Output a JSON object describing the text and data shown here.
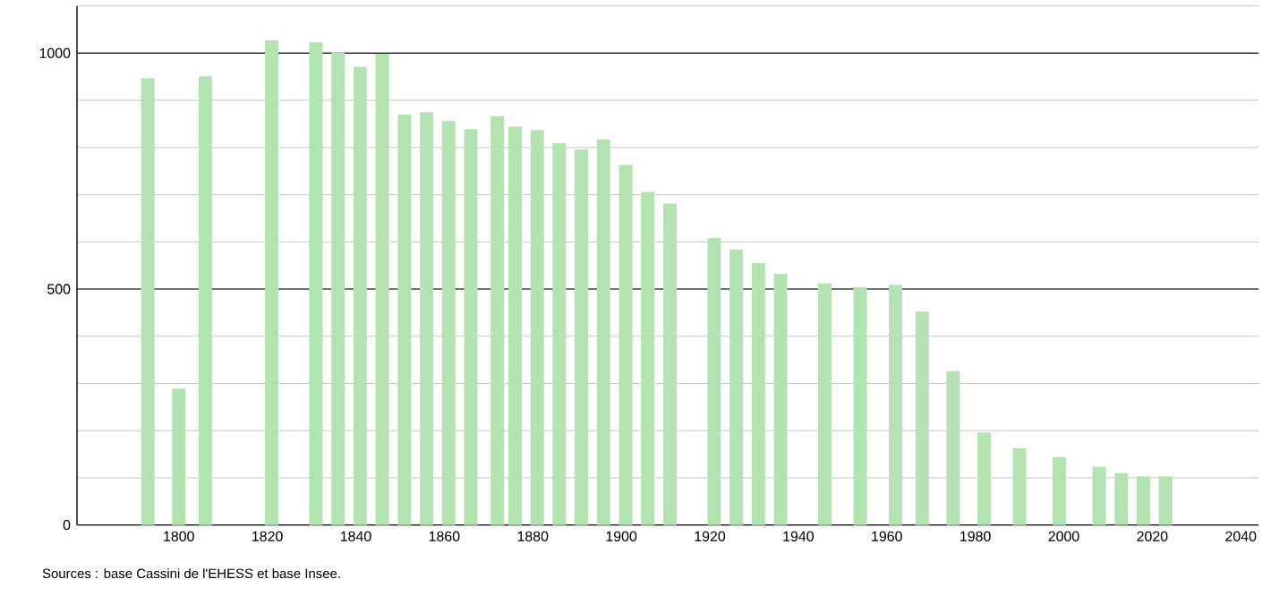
{
  "chart_data": {
    "type": "bar",
    "color": "#b3e3b0",
    "x": [
      1793,
      1800,
      1806,
      1821,
      1831,
      1836,
      1841,
      1846,
      1851,
      1856,
      1861,
      1866,
      1872,
      1876,
      1881,
      1886,
      1891,
      1896,
      1901,
      1906,
      1911,
      1921,
      1926,
      1931,
      1936,
      1946,
      1954,
      1962,
      1968,
      1975,
      1982,
      1990,
      1999,
      2008,
      2013,
      2018,
      2023
    ],
    "values": [
      947,
      289,
      951,
      1027,
      1023,
      1001,
      971,
      999,
      870,
      875,
      856,
      839,
      866,
      844,
      837,
      809,
      796,
      817,
      763,
      706,
      681,
      608,
      584,
      555,
      532,
      512,
      504,
      509,
      452,
      326,
      196,
      163,
      144,
      123,
      110,
      103,
      103
    ],
    "xlim": [
      1777,
      2044
    ],
    "xticks": [
      1800,
      1820,
      1840,
      1860,
      1880,
      1900,
      1920,
      1940,
      1960,
      1980,
      2000,
      2020,
      2040
    ],
    "ylim": [
      0,
      1100
    ],
    "yticks": [
      0,
      {
        "value": 100,
        "label": null
      },
      {
        "value": 200,
        "label": null
      },
      {
        "value": 300,
        "label": null
      },
      {
        "value": 400,
        "label": null
      },
      500,
      {
        "value": 600,
        "label": null
      },
      {
        "value": 700,
        "label": null
      },
      {
        "value": 800,
        "label": null
      },
      {
        "value": 900,
        "label": null
      },
      1000,
      {
        "value": 1100,
        "label": null
      }
    ],
    "grid": "y",
    "annotations": [
      "Sources : base Cassini de l'EHESS et base Insee."
    ]
  }
}
